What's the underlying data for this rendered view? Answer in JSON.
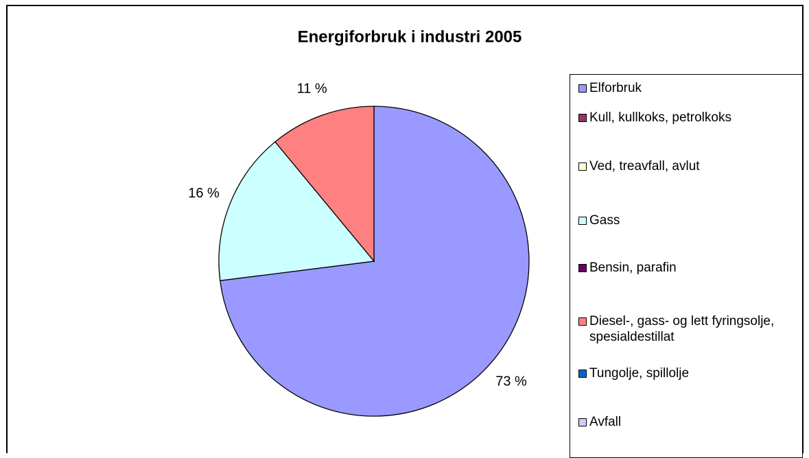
{
  "chart_data": {
    "type": "pie",
    "title": "Energiforbruk i industri 2005",
    "categories": [
      "Elforbruk",
      "Kull, kullkoks, petrolkoks",
      "Ved, treavfall, avlut",
      "Gass",
      "Bensin, parafin",
      "Diesel-, gass- og lett fyringsolje, spesialdestillat",
      "Tungolje, spillolje",
      "Avfall"
    ],
    "values": [
      73,
      0,
      0,
      16,
      0,
      11,
      0,
      0
    ],
    "value_labels": [
      "73 %",
      null,
      null,
      "16 %",
      null,
      "11 %",
      null,
      null
    ],
    "colors": [
      "#9999ff",
      "#993366",
      "#ffffcc",
      "#ccffff",
      "#660066",
      "#ff8080",
      "#0066cc",
      "#ccccff"
    ]
  }
}
